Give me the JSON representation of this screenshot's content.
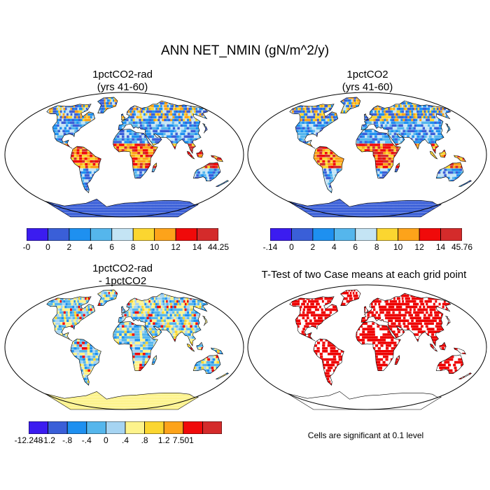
{
  "title": "ANN NET_NMIN (gN/m^2/y)",
  "panels": [
    {
      "id": "p1",
      "title_lines": [
        "1pctCO2-rad",
        "(yrs 41-60)"
      ],
      "scheme": "abs"
    },
    {
      "id": "p2",
      "title_lines": [
        "1pctCO2",
        "(yrs 41-60)"
      ],
      "scheme": "abs"
    },
    {
      "id": "p3",
      "title_lines": [
        "1pctCO2-rad",
        "- 1pctCO2"
      ],
      "scheme": "diff"
    },
    {
      "id": "p4",
      "title_lines": [
        "T-Test of two Case means at each grid point"
      ],
      "scheme": "ttest"
    }
  ],
  "colorbars": {
    "abs1": {
      "labels": [
        "-0",
        "0",
        "2",
        "4",
        "6",
        "8",
        "10",
        "12",
        "14",
        "44.25"
      ],
      "colors": [
        "#3b1cf0",
        "#3a5fd8",
        "#1e90f0",
        "#55b6ec",
        "#c4e4f4",
        "#fbd630",
        "#fda31a",
        "#f00a0a",
        "#d42b2b"
      ]
    },
    "abs2": {
      "labels": [
        ".14",
        "0",
        "2",
        "4",
        "6",
        "8",
        "10",
        "12",
        "14",
        "45.76"
      ],
      "labels_prefix_first": "-",
      "colors": [
        "#3b1cf0",
        "#3a5fd8",
        "#1e90f0",
        "#55b6ec",
        "#c4e4f4",
        "#fbd630",
        "#fda31a",
        "#f00a0a",
        "#d42b2b"
      ]
    },
    "diff": {
      "labels": [
        "-12.248",
        "-1.2",
        "-.8",
        "-.4",
        "0",
        ".4",
        ".8",
        "1.2",
        "7.501"
      ],
      "colors": [
        "#3b1cf0",
        "#3a5fd8",
        "#1e90f0",
        "#55b6ec",
        "#a6d4f2",
        "#fdf38c",
        "#fbd630",
        "#fda31a",
        "#f00a0a",
        "#d42b2b"
      ]
    }
  },
  "ttest_note": "Cells are significant at 0.1 level",
  "ttest_color": "#ee0000"
}
